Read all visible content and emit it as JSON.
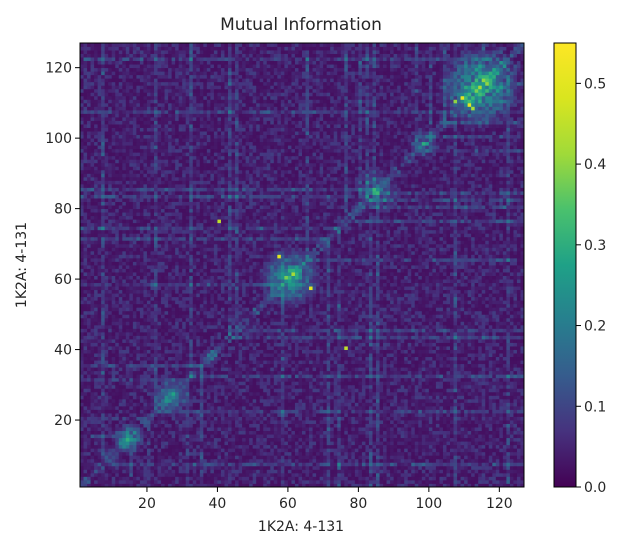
{
  "chart_data": {
    "type": "heatmap",
    "title": "Mutual Information",
    "xlabel": "1K2A: 4-131",
    "ylabel": "1K2A: 4-131",
    "xlim": [
      1,
      127
    ],
    "ylim": [
      1,
      127
    ],
    "xticks": [
      20,
      40,
      60,
      80,
      100,
      120
    ],
    "yticks": [
      20,
      40,
      60,
      80,
      100,
      120
    ],
    "grid": false,
    "colormap": "viridis",
    "colorbar": {
      "min": 0.0,
      "max": 0.55,
      "ticks": [
        "0.0",
        "0.1",
        "0.2",
        "0.3",
        "0.4",
        "0.5"
      ],
      "tick_values": [
        0.0,
        0.1,
        0.2,
        0.3,
        0.4,
        0.5
      ]
    },
    "matrix_size": 126,
    "background_level": 0.02,
    "highlights": [
      {
        "row": 66,
        "col": 57,
        "value": 0.5
      },
      {
        "row": 57,
        "col": 66,
        "value": 0.5
      },
      {
        "row": 109,
        "col": 111,
        "value": 0.5
      },
      {
        "row": 111,
        "col": 109,
        "value": 0.5
      },
      {
        "row": 40,
        "col": 76,
        "value": 0.45
      },
      {
        "row": 76,
        "col": 40,
        "value": 0.45
      },
      {
        "row": 61,
        "col": 61,
        "value": 0.42
      },
      {
        "row": 60,
        "col": 59,
        "value": 0.38
      },
      {
        "row": 108,
        "col": 112,
        "value": 0.42
      },
      {
        "row": 110,
        "col": 107,
        "value": 0.4
      },
      {
        "row": 113,
        "col": 113,
        "value": 0.38
      },
      {
        "row": 116,
        "col": 116,
        "value": 0.35
      },
      {
        "row": 14,
        "col": 14,
        "value": 0.3
      },
      {
        "row": 27,
        "col": 27,
        "value": 0.28
      },
      {
        "row": 98,
        "col": 99,
        "value": 0.26
      }
    ],
    "clusters": [
      {
        "center": [
          60,
          60
        ],
        "radius": 6,
        "level": 0.22
      },
      {
        "center": [
          114,
          114
        ],
        "radius": 8,
        "level": 0.24
      },
      {
        "center": [
          14,
          14
        ],
        "radius": 3,
        "level": 0.18
      },
      {
        "center": [
          26,
          26
        ],
        "radius": 4,
        "level": 0.14
      },
      {
        "center": [
          85,
          85
        ],
        "radius": 4,
        "level": 0.12
      },
      {
        "center": [
          98,
          98
        ],
        "radius": 3,
        "level": 0.12
      },
      {
        "center": [
          37,
          38
        ],
        "radius": 2,
        "level": 0.12
      }
    ]
  }
}
